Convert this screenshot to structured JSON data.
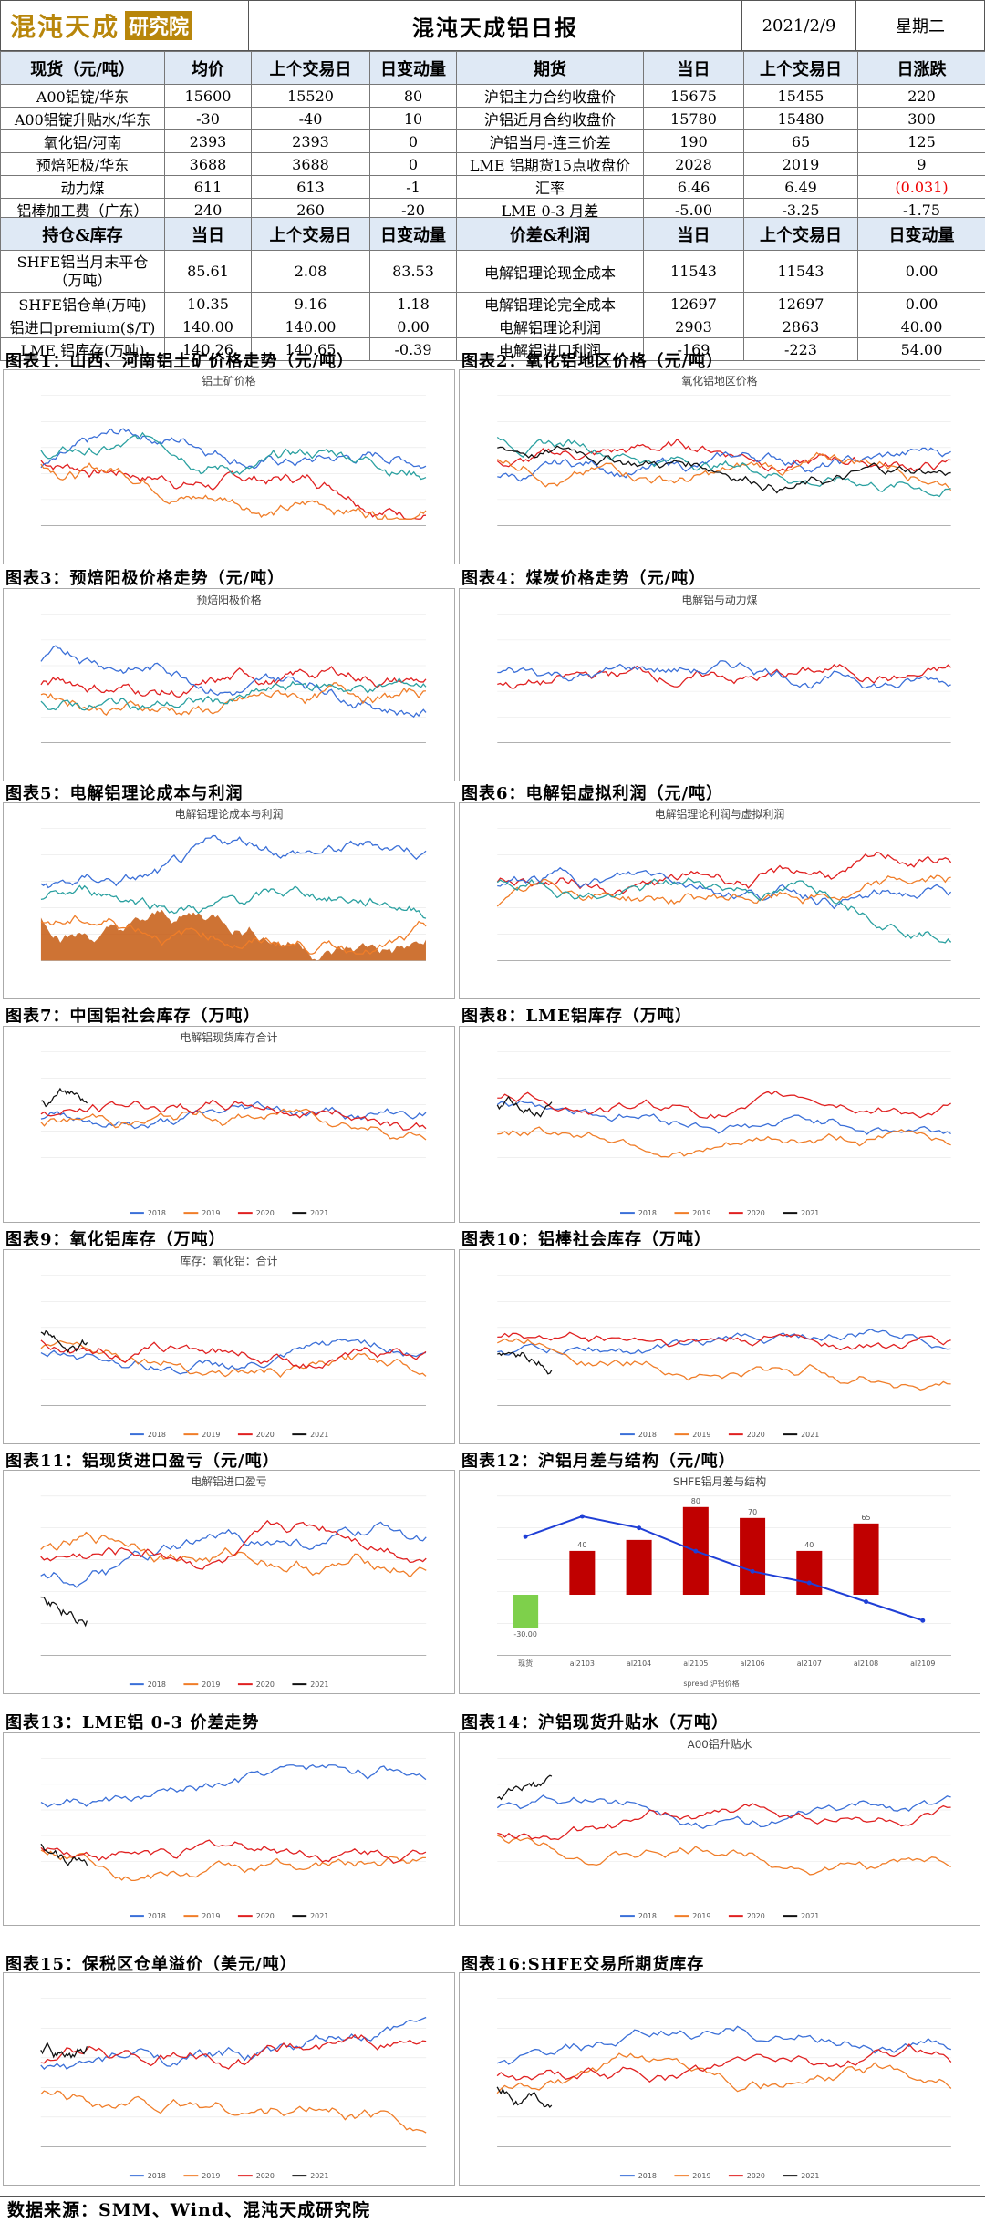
{
  "header": {
    "logo_text": "混沌天成",
    "logo_badge": "研究院",
    "title": "混沌天成铝日报",
    "date": "2021/2/9",
    "weekday": "星期二"
  },
  "table1": {
    "headers": [
      "现货（元/吨）",
      "均价",
      "上个交易日",
      "日变动量",
      "期货",
      "当日",
      "上个交易日",
      "日涨跌"
    ],
    "rows": [
      [
        "A00铝锭/华东",
        "15600",
        "15520",
        "80",
        "沪铝主力合约收盘价",
        "15675",
        "15455",
        "220"
      ],
      [
        "A00铝锭升贴水/华东",
        "-30",
        "-40",
        "10",
        "沪铝近月合约收盘价",
        "15780",
        "15480",
        "300"
      ],
      [
        "氧化铝/河南",
        "2393",
        "2393",
        "0",
        "沪铝当月-连三价差",
        "190",
        "65",
        "125"
      ],
      [
        "预焙阳极/华东",
        "3688",
        "3688",
        "0",
        "LME 铝期货15点收盘价",
        "2028",
        "2019",
        "9"
      ],
      [
        "动力煤",
        "611",
        "613",
        "-1",
        "汇率",
        "6.46",
        "6.49",
        "(0.031)"
      ],
      [
        "铝棒加工费（广东）",
        "240",
        "260",
        "-20",
        "LME 0-3 月差",
        "-5.00",
        "-3.25",
        "-1.75"
      ]
    ]
  },
  "table2": {
    "headers": [
      "持仓&库存",
      "当日",
      "上个交易日",
      "日变动量",
      "价差&利润",
      "当日",
      "上个交易日",
      "日变动量"
    ],
    "rows": [
      [
        "SHFE铝当月末平仓（万吨）",
        "85.61",
        "2.08",
        "83.53",
        "电解铝理论现金成本",
        "11543",
        "11543",
        "0.00"
      ],
      [
        "SHFE铝仓单(万吨)",
        "10.35",
        "9.16",
        "1.18",
        "电解铝理论完全成本",
        "12697",
        "12697",
        "0.00"
      ],
      [
        "铝进口premium($/T)",
        "140.00",
        "140.00",
        "0.00",
        "电解铝理论利润",
        "2903",
        "2863",
        "40.00"
      ],
      [
        "LME 铝库存(万吨)",
        "140.26",
        "140.65",
        "-0.39",
        "电解铝进口利润",
        "-169",
        "-223",
        "54.00"
      ]
    ]
  },
  "sections": [
    "图表1：山西、河南铝土矿价格走势（元/吨）",
    "图表2：氧化铝地区价格（元/吨）",
    "图表3：预焙阳极价格走势（元/吨）",
    "图表4：煤炭价格走势（元/吨）",
    "图表5：电解铝理论成本与利润",
    "图表6：电解铝虚拟利润（元/吨）",
    "图表7：中国铝社会库存（万吨）",
    "图表8：LME铝库存（万吨）",
    "图表9：氧化铝库存（万吨）",
    "图表10：铝棒社会库存（万吨）",
    "图表11：铝现货进口盈亏（元/吨）",
    "图表12：沪铝月差与结构（元/吨）",
    "图表13：LME铝 0-3 价差走势",
    "图表14：沪铝现货升贴水（万吨）",
    "图表15：保税区仓单溢价（美元/吨）",
    "图表16:SHFE交易所期货库存"
  ],
  "chart_titles": [
    "铝土矿价格",
    "氧化铝地区价格",
    "预焙阳极价格",
    "电解铝与动力煤",
    "电解铝理论成本与利润",
    "电解铝理论利润与虚拟利润",
    "电解铝现货库存合计",
    "",
    "库存：氧化铝：合计",
    "",
    "电解铝进口盈亏",
    "SHFE铝月差与结构",
    "",
    "A00铝升贴水",
    "",
    ""
  ],
  "legends": {
    "seasonal": [
      "2018",
      "2019",
      "2020",
      "2021"
    ],
    "seasonal_colors": [
      "#3a6fd8",
      "#f07d28",
      "#e02020",
      "#111111"
    ]
  },
  "chart_data": [
    {
      "type": "bar",
      "title": "SHFE铝月差与结构",
      "categories": [
        "现货",
        "al2103",
        "al2104",
        "al2105",
        "al2106",
        "al2107",
        "al2108",
        "al2109"
      ],
      "series": [
        {
          "name": "spread",
          "values": [
            -30,
            40,
            50,
            80,
            70,
            40,
            65,
            null
          ]
        },
        {
          "name": "沪铝价格",
          "values": [
            15710,
            15780,
            15740,
            15660,
            15590,
            15550,
            15485,
            15420
          ]
        }
      ],
      "labels": [
        "-30.00",
        "40",
        "",
        "80",
        "70",
        "40",
        "65",
        ""
      ]
    }
  ],
  "footer": "数据来源：SMM、Wind、混沌天成研究院"
}
